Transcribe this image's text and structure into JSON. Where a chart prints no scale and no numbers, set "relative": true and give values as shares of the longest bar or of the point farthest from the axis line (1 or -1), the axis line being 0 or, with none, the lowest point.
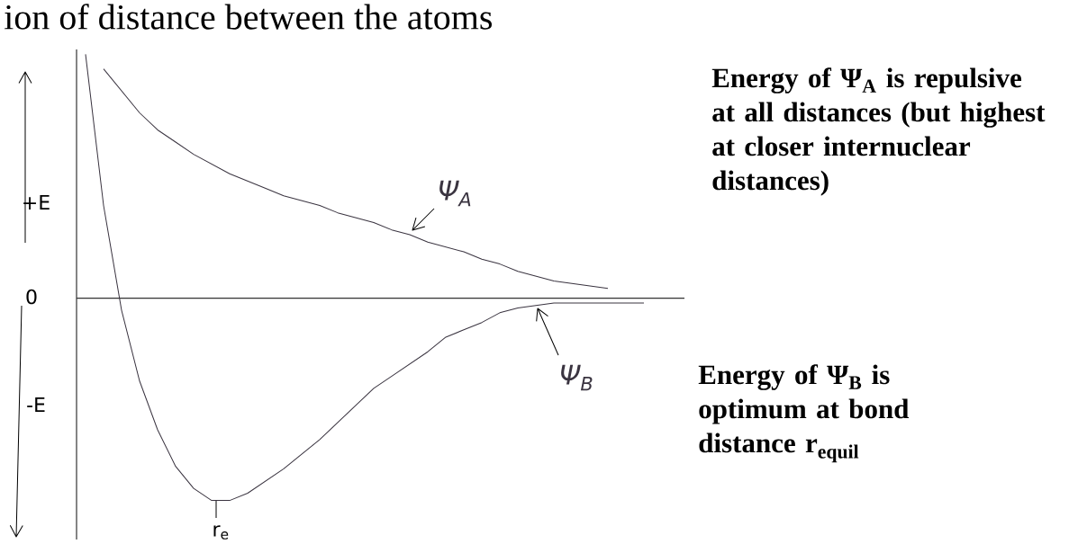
{
  "chart_data": {
    "type": "line",
    "relative": true,
    "title": "ion of distance between the atoms",
    "marker": "none",
    "line_style": "solid",
    "legend": false,
    "categories": [
      null,
      null,
      null,
      null,
      null,
      null,
      null,
      null,
      null,
      null,
      null,
      null,
      null,
      null,
      null,
      null,
      null,
      null,
      null,
      null,
      null,
      null,
      null,
      null,
      null,
      null,
      null,
      null,
      null,
      null,
      null,
      null,
      null
    ],
    "series": [
      {
        "name": "Ψ$_{A}$",
        "color": "#3a3440",
        "values": [
          null,
          0.94,
          0.85,
          0.76,
          0.69,
          0.64,
          0.59,
          0.55,
          0.51,
          0.48,
          0.45,
          0.42,
          0.4,
          0.38,
          0.35,
          0.33,
          0.31,
          0.28,
          0.26,
          0.23,
          0.21,
          0.19,
          0.16,
          0.14,
          0.11,
          0.09,
          0.07,
          0.06,
          0.05,
          0.04,
          null,
          null,
          null
        ]
      },
      {
        "name": "Ψ$_{B}$",
        "color": "#3a3440",
        "values": [
          1.0,
          0.38,
          -0.05,
          -0.34,
          -0.54,
          -0.69,
          -0.78,
          -0.83,
          -0.83,
          -0.8,
          -0.75,
          -0.7,
          -0.64,
          -0.58,
          -0.51,
          -0.44,
          -0.37,
          -0.32,
          -0.27,
          -0.22,
          -0.16,
          -0.13,
          -0.1,
          -0.06,
          -0.04,
          -0.03,
          -0.02,
          -0.02,
          -0.02,
          -0.02,
          -0.02,
          -0.02,
          null
        ]
      }
    ],
    "annotations": [
      "+E",
      "0",
      "-E",
      "r$_{e}$",
      "Energy of Ψ$_{A}$ is repulsive at all distances (but highest at closer internuclear distances)",
      "Energy of Ψ$_{B}$ is optimum at bond distance r$_{equil}$"
    ]
  }
}
